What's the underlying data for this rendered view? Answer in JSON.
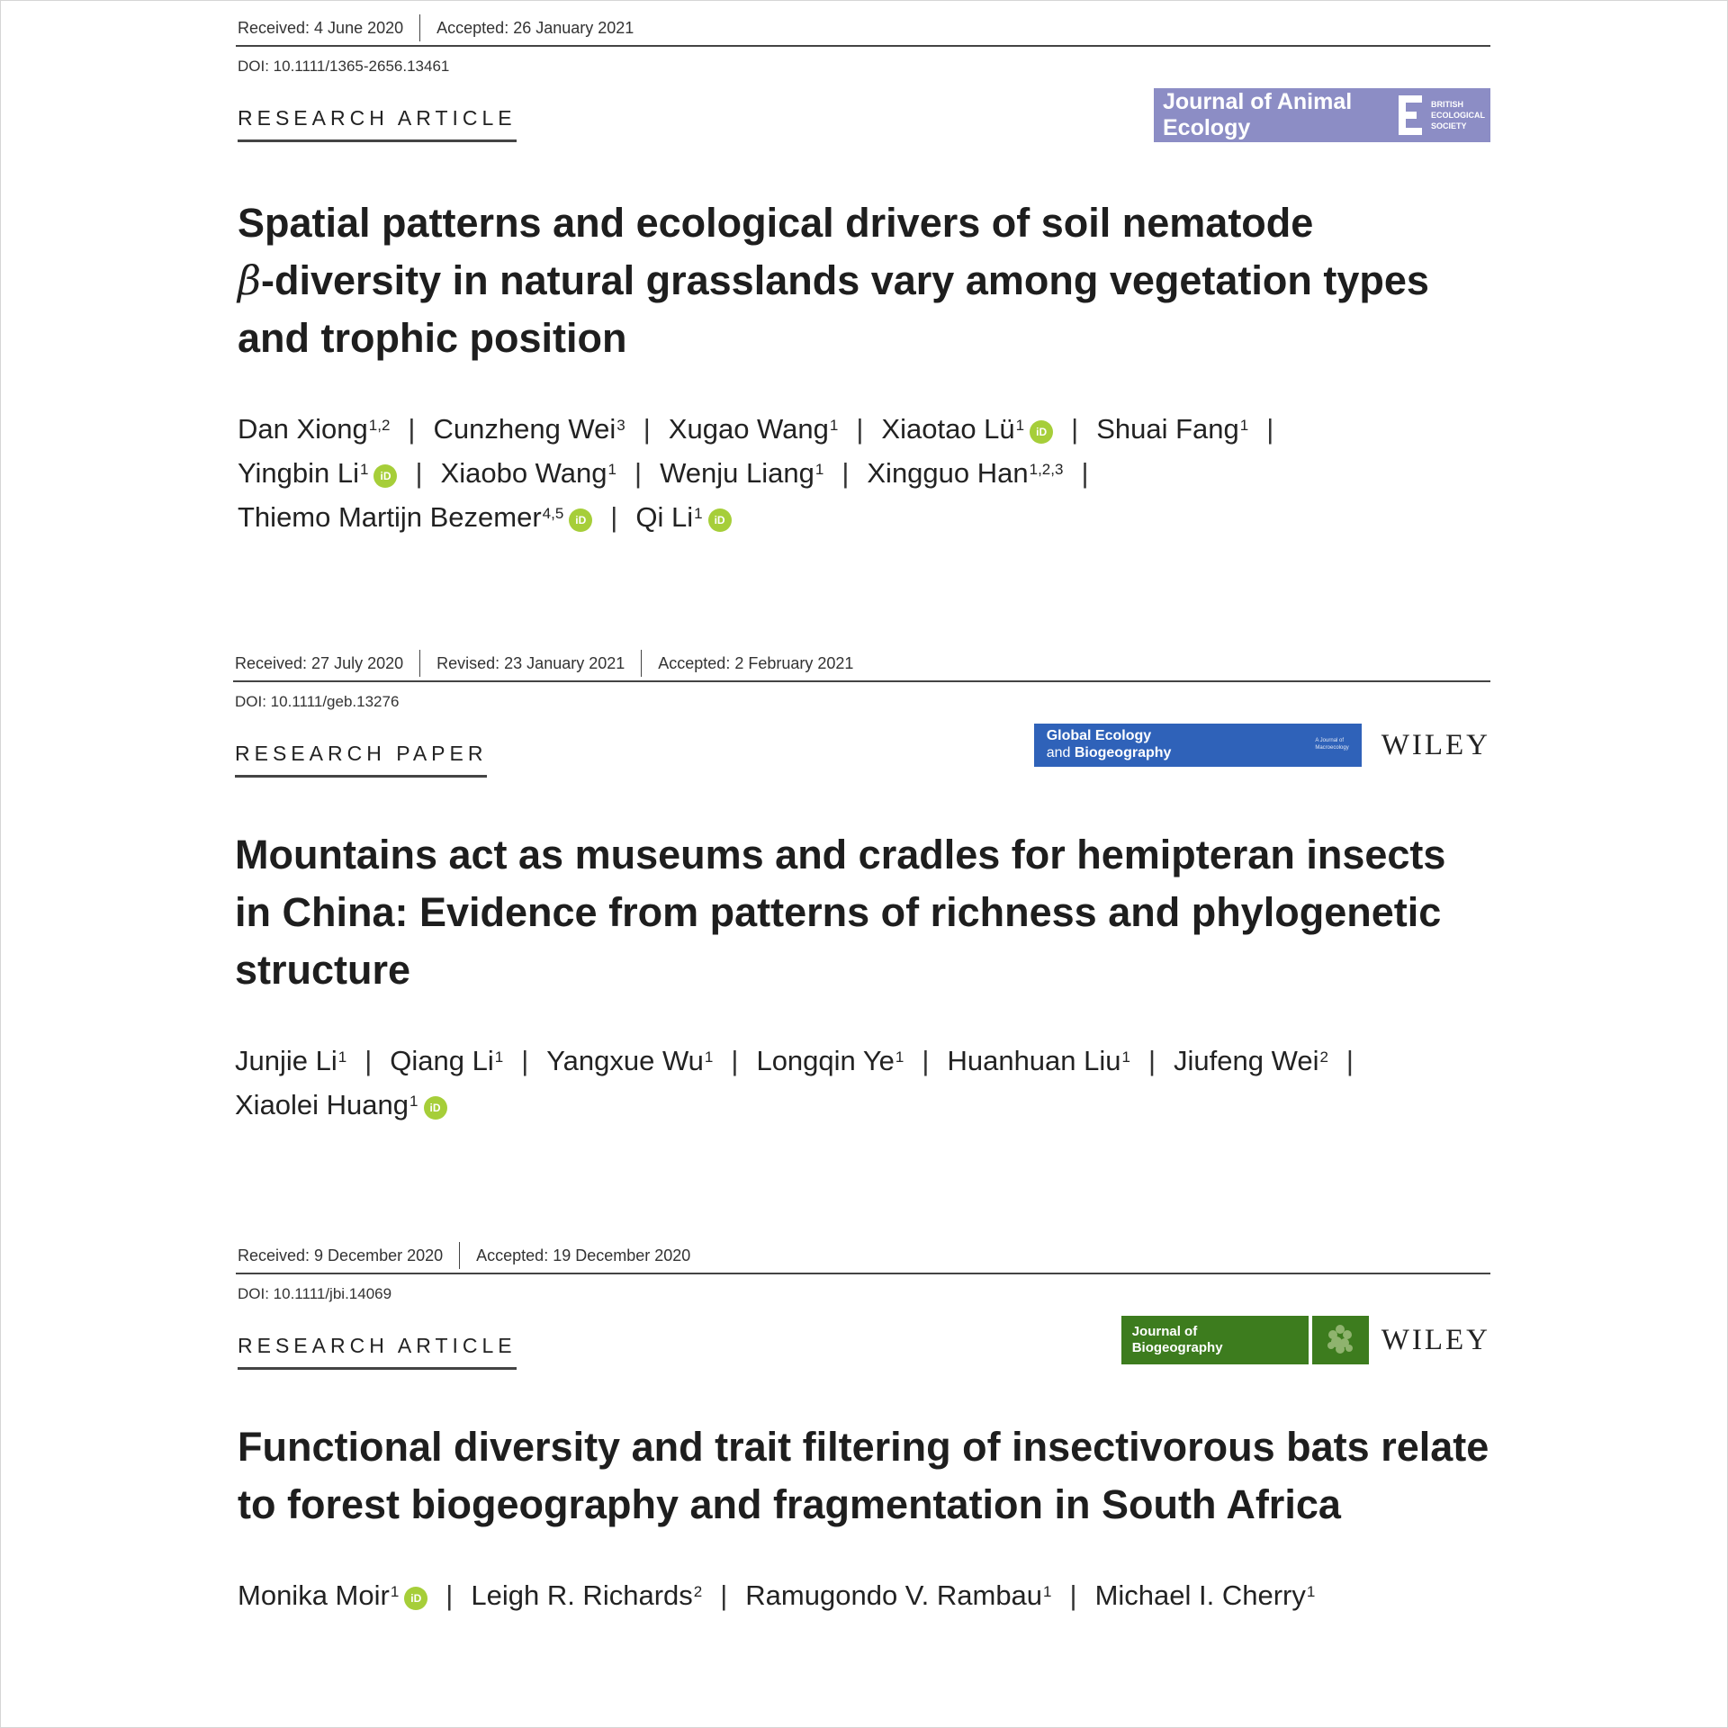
{
  "articles": [
    {
      "dates": [
        "Received: 4 June 2020",
        "Accepted: 26 January 2021"
      ],
      "doi": "DOI: 10.1111/1365-2656.13461",
      "article_type": "RESEARCH ARTICLE",
      "journal_logo": {
        "name": "Journal of Animal Ecology",
        "society": "BRITISH ECOLOGICAL SOCIETY",
        "mark": "E",
        "color": "#8c8dc5"
      },
      "title_parts": [
        "Spatial patterns and ecological drivers of soil nematode",
        "β",
        "-diversity in natural grasslands vary among vegetation types and trophic position"
      ],
      "authors": [
        {
          "name": "Dan Xiong",
          "aff": "1,2",
          "orcid": false
        },
        {
          "name": "Cunzheng Wei",
          "aff": "3",
          "orcid": false
        },
        {
          "name": "Xugao Wang",
          "aff": "1",
          "orcid": false
        },
        {
          "name": "Xiaotao Lü",
          "aff": "1",
          "orcid": true
        },
        {
          "name": "Shuai Fang",
          "aff": "1",
          "orcid": false
        },
        {
          "name": "Yingbin Li",
          "aff": "1",
          "orcid": true
        },
        {
          "name": "Xiaobo Wang",
          "aff": "1",
          "orcid": false
        },
        {
          "name": "Wenju Liang",
          "aff": "1",
          "orcid": false
        },
        {
          "name": "Xingguo Han",
          "aff": "1,2,3",
          "orcid": false
        },
        {
          "name": "Thiemo Martijn Bezemer",
          "aff": "4,5",
          "orcid": true
        },
        {
          "name": "Qi Li",
          "aff": "1",
          "orcid": true
        }
      ]
    },
    {
      "dates": [
        "Received: 27 July 2020",
        "Revised: 23 January 2021",
        "Accepted: 2 February 2021"
      ],
      "doi": "DOI: 10.1111/geb.13276",
      "article_type": "RESEARCH PAPER",
      "journal_logo": {
        "name_line1": "Global Ecology",
        "name_line2_small": "and",
        "name_line2": "Biogeography",
        "tagline_line1": "A Journal of",
        "tagline_line2": "Macroecology",
        "color": "#2f62b9"
      },
      "publisher": "WILEY",
      "title": "Mountains act as museums and cradles for hemipteran insects in China: Evidence from patterns of richness and phylogenetic structure",
      "authors": [
        {
          "name": "Junjie Li",
          "aff": "1",
          "orcid": false
        },
        {
          "name": "Qiang Li",
          "aff": "1",
          "orcid": false
        },
        {
          "name": "Yangxue Wu",
          "aff": "1",
          "orcid": false
        },
        {
          "name": "Longqin Ye",
          "aff": "1",
          "orcid": false
        },
        {
          "name": "Huanhuan Liu",
          "aff": "1",
          "orcid": false
        },
        {
          "name": "Jiufeng Wei",
          "aff": "2",
          "orcid": false
        },
        {
          "name": "Xiaolei Huang",
          "aff": "1",
          "orcid": true
        }
      ]
    },
    {
      "dates": [
        "Received: 9 December 2020",
        "Accepted: 19 December 2020"
      ],
      "doi": "DOI: 10.1111/jbi.14069",
      "article_type": "RESEARCH ARTICLE",
      "journal_logo": {
        "name_line1": "Journal of",
        "name_line2": "Biogeography",
        "color": "#3d7c1e"
      },
      "publisher": "WILEY",
      "title": "Functional diversity and trait filtering of insectivorous bats relate to forest biogeography and fragmentation in South Africa",
      "authors": [
        {
          "name": "Monika Moir",
          "aff": "1",
          "orcid": true
        },
        {
          "name": "Leigh R. Richards",
          "aff": "2",
          "orcid": false
        },
        {
          "name": "Ramugondo V. Rambau",
          "aff": "1",
          "orcid": false
        },
        {
          "name": "Michael I. Cherry",
          "aff": "1",
          "orcid": false
        }
      ]
    }
  ],
  "orcid_label": "iD",
  "separator": "|",
  "colors": {
    "orcid_green": "#a6ce39",
    "text": "#222222",
    "rule": "#444444"
  }
}
